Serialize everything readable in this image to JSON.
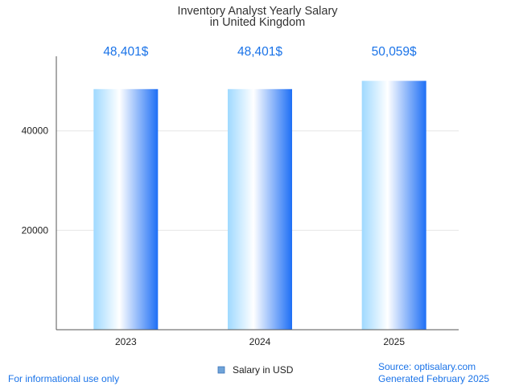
{
  "chart_data": {
    "type": "bar",
    "title": "Inventory Analyst Yearly Salary",
    "subtitle": "in United Kingdom",
    "categories": [
      "2023",
      "2024",
      "2025"
    ],
    "series": [
      {
        "name": "Salary in USD",
        "values": [
          48401,
          48401,
          50059
        ],
        "labels": [
          "48,401$",
          "48,401$",
          "50,059$"
        ]
      }
    ],
    "xlabel": "",
    "ylabel": "",
    "ylim": [
      0,
      55000
    ],
    "yticks": [
      20000,
      40000
    ],
    "ytick_labels": [
      "20000",
      "40000"
    ],
    "grid": true,
    "legend_position": "bottom-center",
    "colors": {
      "bar_light": "#9fd9ff",
      "bar_mid": "#ffffff",
      "bar_dark": "#1e6ff5",
      "label": "#1a73e8",
      "legend_swatch": "#6fa3d8",
      "grid": "#e6e6e6",
      "axis": "#555555"
    }
  },
  "footer": {
    "left": "For informational use only",
    "source": "Source: optisalary.com",
    "generated": "Generated February 2025"
  }
}
